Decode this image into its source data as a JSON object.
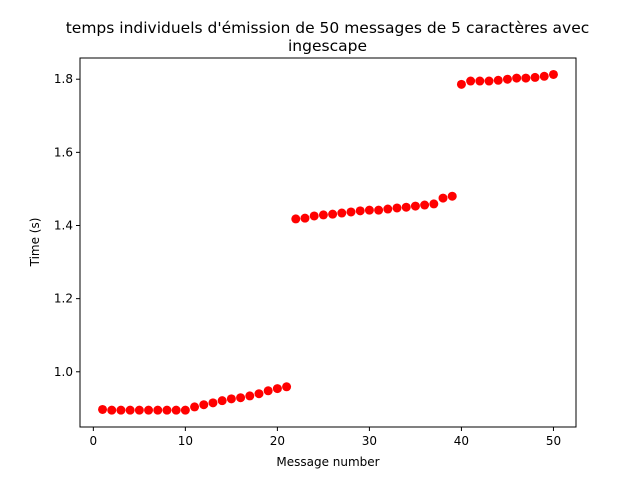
{
  "chart_data": {
    "type": "scatter",
    "title": "temps individuels d'émission de 50 messages de 5 caractères avec ingescape",
    "xlabel": "Message number",
    "ylabel": "Time (s)",
    "x": [
      1,
      2,
      3,
      4,
      5,
      6,
      7,
      8,
      9,
      10,
      11,
      12,
      13,
      14,
      15,
      16,
      17,
      18,
      19,
      20,
      21,
      22,
      23,
      24,
      25,
      26,
      27,
      28,
      29,
      30,
      31,
      32,
      33,
      34,
      35,
      36,
      37,
      38,
      39,
      40,
      41,
      42,
      43,
      44,
      45,
      46,
      47,
      48,
      49,
      50
    ],
    "y": [
      0.897,
      0.895,
      0.895,
      0.895,
      0.895,
      0.895,
      0.895,
      0.895,
      0.895,
      0.895,
      0.904,
      0.91,
      0.915,
      0.921,
      0.926,
      0.929,
      0.934,
      0.94,
      0.948,
      0.954,
      0.959,
      1.418,
      1.42,
      1.426,
      1.429,
      1.431,
      1.434,
      1.437,
      1.44,
      1.442,
      1.442,
      1.445,
      1.448,
      1.45,
      1.453,
      1.456,
      1.459,
      1.475,
      1.48,
      1.786,
      1.795,
      1.795,
      1.795,
      1.797,
      1.8,
      1.803,
      1.803,
      1.805,
      1.808,
      1.813
    ],
    "color": "#ff0000",
    "xlim": [
      -1.45,
      52.45
    ],
    "ylim": [
      0.849,
      1.858
    ],
    "xticks": [
      0,
      10,
      20,
      30,
      40,
      50
    ],
    "yticks": [
      {
        "value": 1,
        "label": "1.0"
      },
      1.2,
      1.4,
      1.6,
      1.8
    ]
  }
}
